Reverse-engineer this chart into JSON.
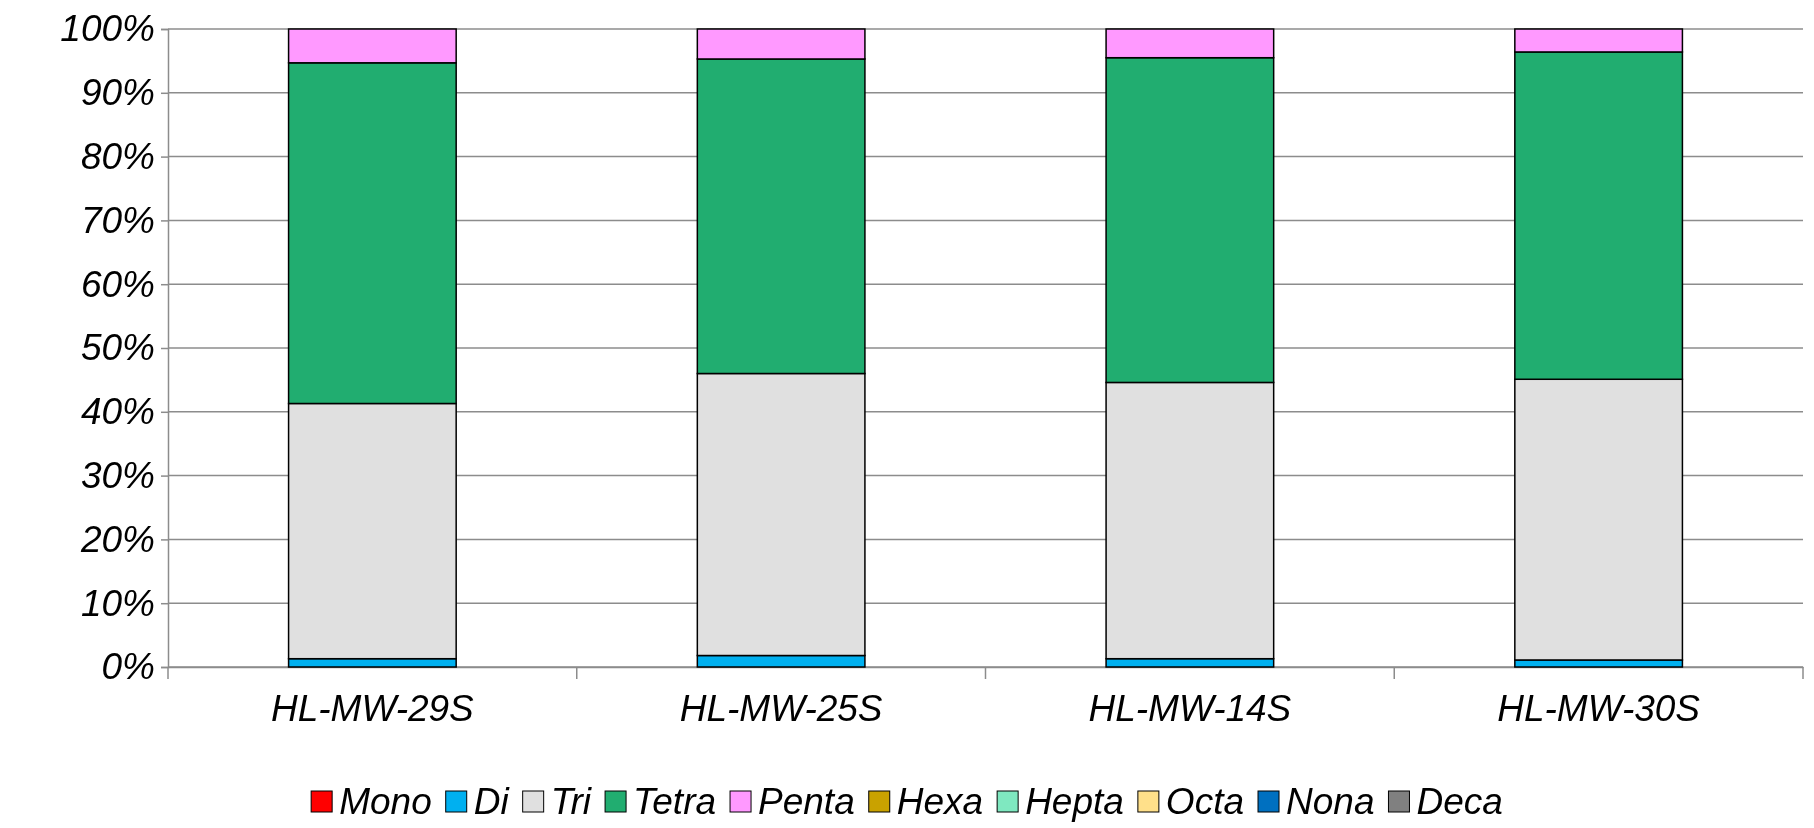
{
  "chart_data": {
    "type": "bar",
    "stacked": true,
    "categories": [
      "HL-MW-29S",
      "HL-MW-25S",
      "HL-MW-14S",
      "HL-MW-30S"
    ],
    "series": [
      {
        "name": "Mono",
        "color": "#ff0000",
        "values": [
          0,
          0,
          0,
          0
        ]
      },
      {
        "name": "Di",
        "color": "#00b0f0",
        "values": [
          1.3,
          1.8,
          1.3,
          1.1
        ]
      },
      {
        "name": "Tri",
        "color": "#e0e0e0",
        "values": [
          40.0,
          44.2,
          43.3,
          44.0
        ]
      },
      {
        "name": "Tetra",
        "color": "#21ad70",
        "values": [
          53.4,
          49.3,
          50.9,
          51.3
        ]
      },
      {
        "name": "Penta",
        "color": "#ff99ff",
        "values": [
          5.3,
          4.7,
          4.5,
          3.6
        ]
      },
      {
        "name": "Hexa",
        "color": "#c9a200",
        "values": [
          0,
          0,
          0,
          0
        ]
      },
      {
        "name": "Hepta",
        "color": "#7fe8c0",
        "values": [
          0,
          0,
          0,
          0
        ]
      },
      {
        "name": "Octa",
        "color": "#ffe08a",
        "values": [
          0,
          0,
          0,
          0
        ]
      },
      {
        "name": "Nona",
        "color": "#0070c0",
        "values": [
          0,
          0,
          0,
          0
        ]
      },
      {
        "name": "Deca",
        "color": "#808080",
        "values": [
          0,
          0,
          0,
          0
        ]
      }
    ],
    "ylim": [
      0,
      100
    ],
    "yticks": [
      {
        "value": 0,
        "label": "0%"
      },
      {
        "value": 10,
        "label": "10%"
      },
      {
        "value": 20,
        "label": "20%"
      },
      {
        "value": 30,
        "label": "30%"
      },
      {
        "value": 40,
        "label": "40%"
      },
      {
        "value": 50,
        "label": "50%"
      },
      {
        "value": 60,
        "label": "60%"
      },
      {
        "value": 70,
        "label": "70%"
      },
      {
        "value": 80,
        "label": "80%"
      },
      {
        "value": 90,
        "label": "90%"
      },
      {
        "value": 100,
        "label": "100%"
      }
    ],
    "grid": "y",
    "legend": "bottom"
  }
}
